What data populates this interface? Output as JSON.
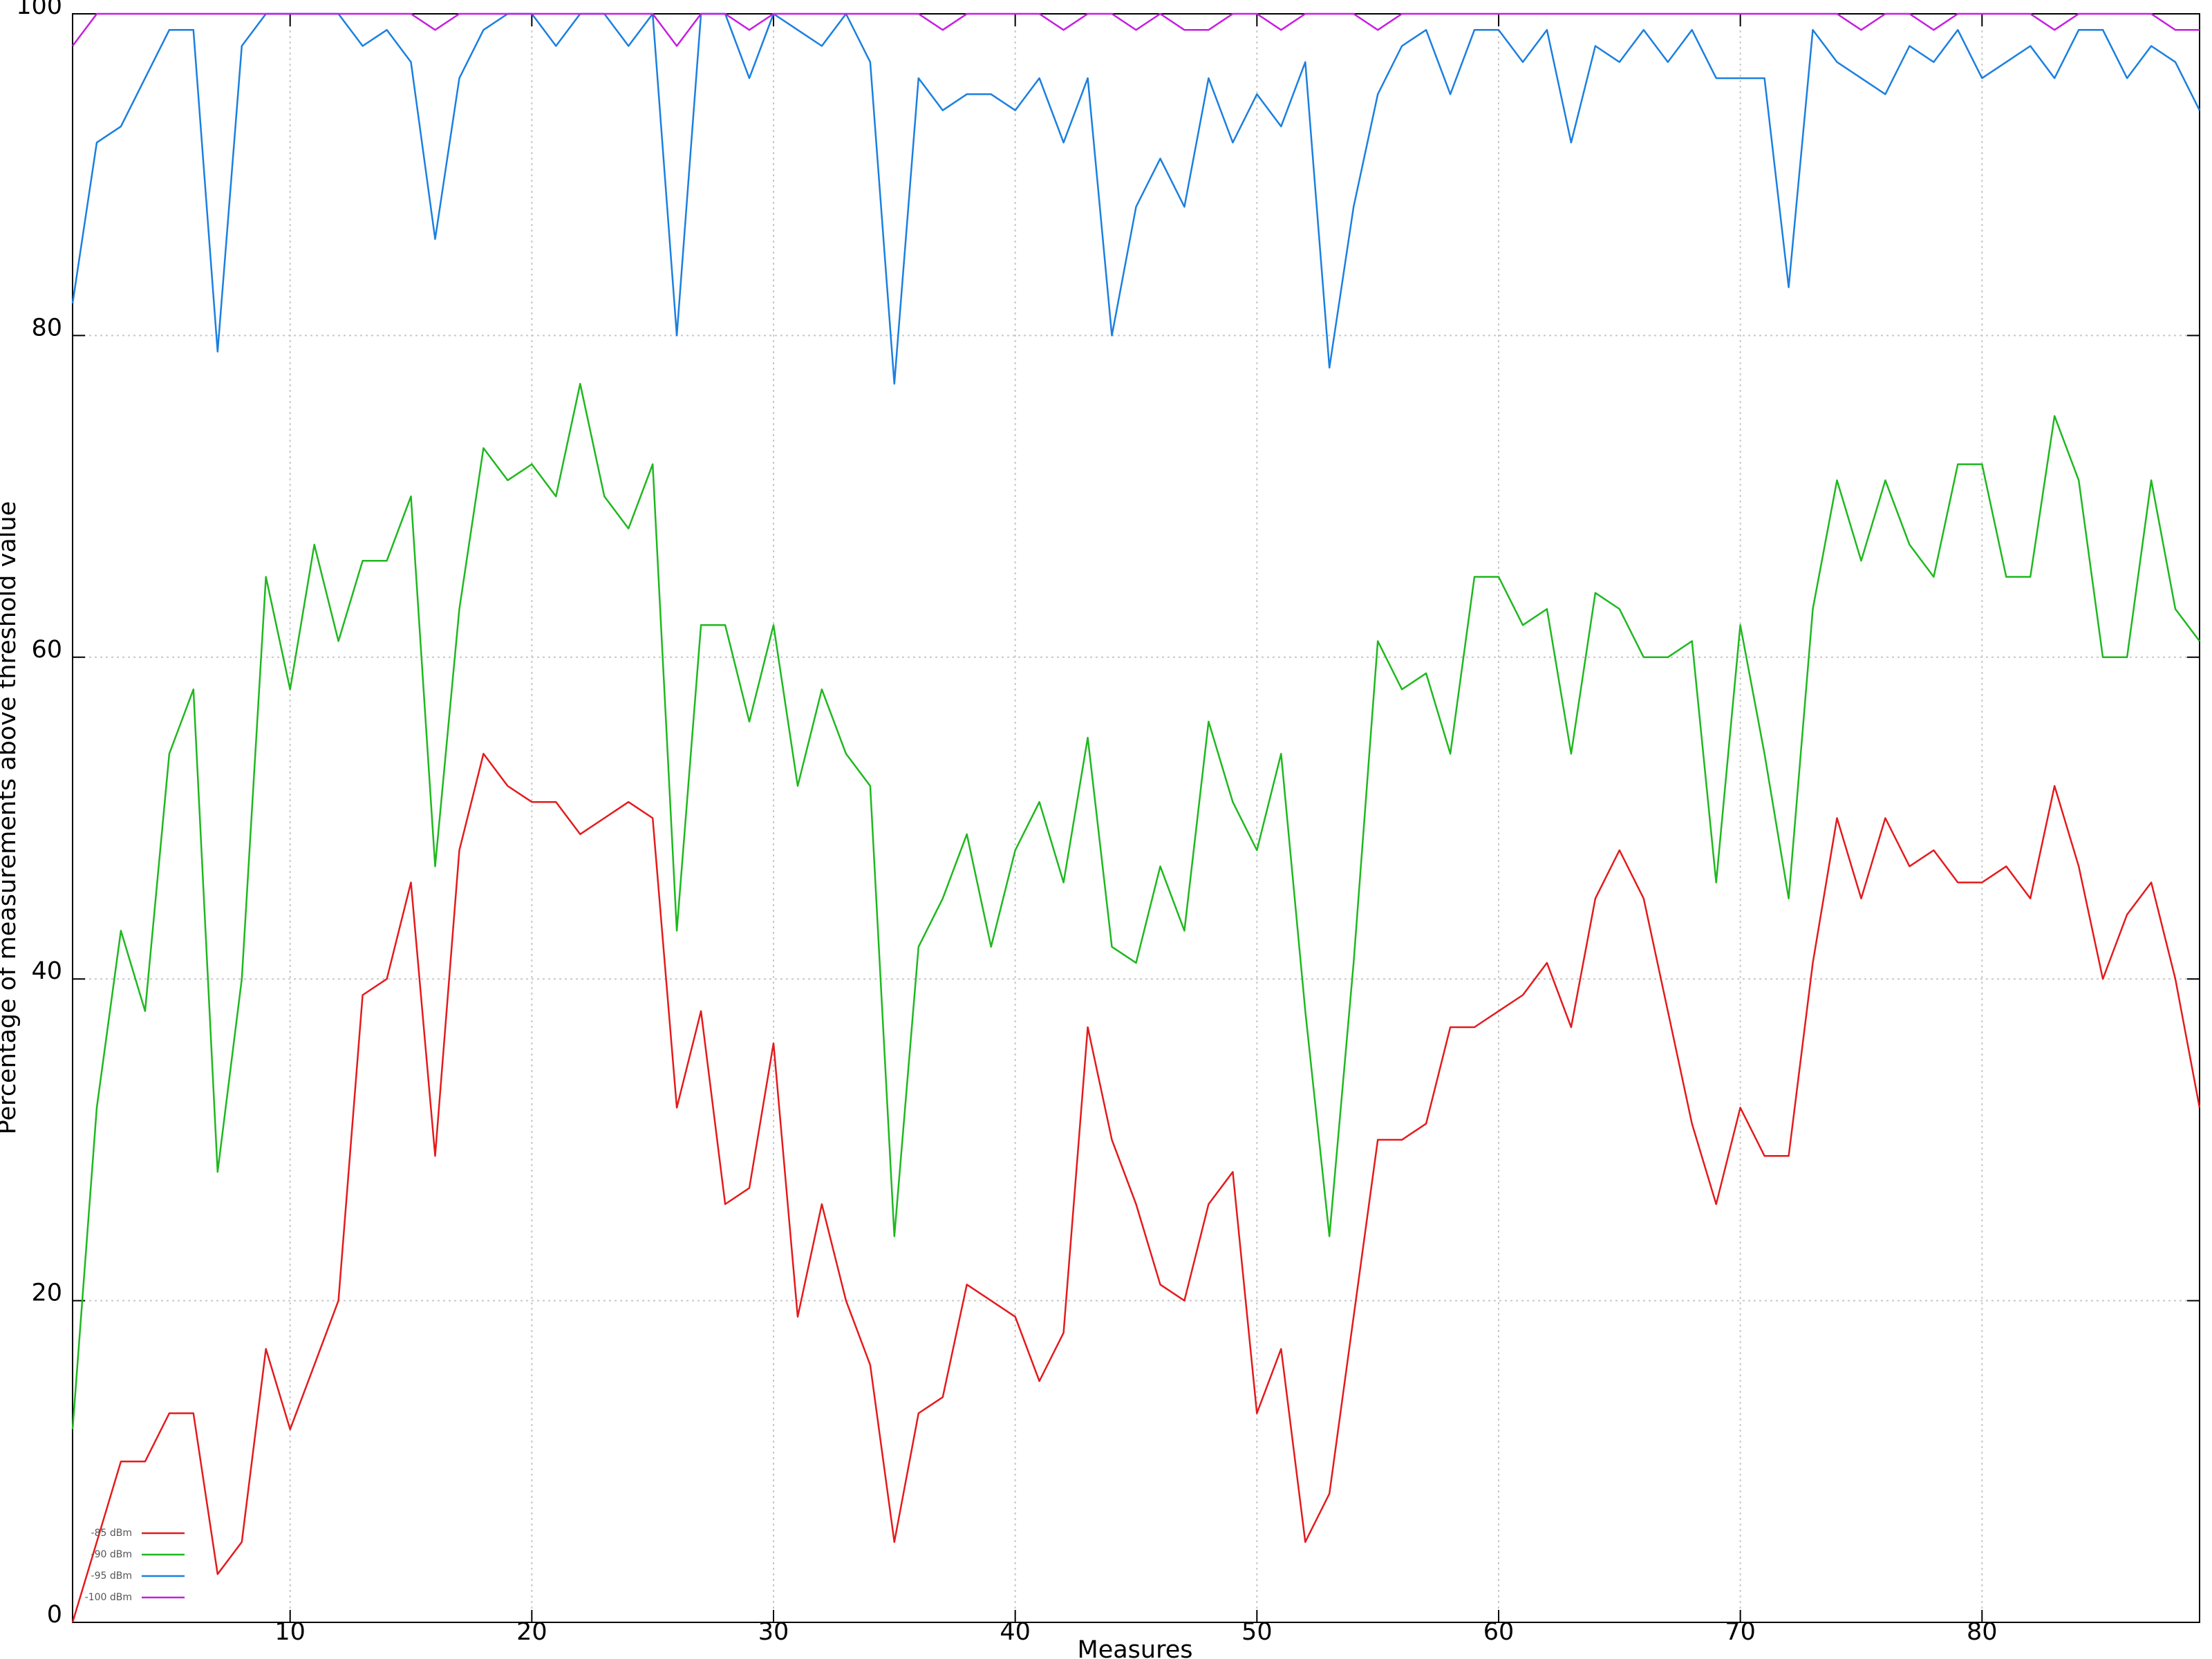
{
  "chart_data": {
    "type": "line",
    "x_label": "Measures",
    "y_label": "Percentage of measurements above threshold value",
    "x": [
      1,
      2,
      3,
      4,
      5,
      6,
      7,
      8,
      9,
      10,
      11,
      12,
      13,
      14,
      15,
      16,
      17,
      18,
      19,
      20,
      21,
      22,
      23,
      24,
      25,
      26,
      27,
      28,
      29,
      30,
      31,
      32,
      33,
      34,
      35,
      36,
      37,
      38,
      39,
      40,
      41,
      42,
      43,
      44,
      45,
      46,
      47,
      48,
      49,
      50,
      51,
      52,
      53,
      54,
      55,
      56,
      57,
      58,
      59,
      60,
      61,
      62,
      63,
      64,
      65,
      66,
      67,
      68,
      69,
      70,
      71,
      72,
      73,
      74,
      75,
      76,
      77,
      78,
      79,
      80,
      81,
      82,
      83,
      84,
      85,
      86,
      87,
      88,
      89
    ],
    "series": [
      {
        "name": "-85 dBm",
        "color": "#e41a1c",
        "values": [
          0,
          5,
          10,
          10,
          13,
          13,
          3,
          5,
          17,
          12,
          16,
          20,
          39,
          40,
          46,
          29,
          48,
          54,
          52,
          51,
          51,
          49,
          50,
          51,
          50,
          32,
          38,
          26,
          27,
          36,
          19,
          26,
          20,
          16,
          5,
          13,
          14,
          21,
          20,
          19,
          15,
          18,
          37,
          30,
          26,
          21,
          20,
          26,
          28,
          13,
          17,
          5,
          8,
          19,
          30,
          30,
          31,
          37,
          37,
          38,
          39,
          41,
          37,
          45,
          48,
          45,
          38,
          31,
          26,
          32,
          29,
          29,
          41,
          50,
          45,
          50,
          47,
          48,
          46,
          46,
          47,
          45,
          52,
          47,
          40,
          44,
          46,
          40,
          32
        ]
      },
      {
        "name": "-90 dBm",
        "color": "#1eb81e",
        "values": [
          12,
          32,
          43,
          38,
          54,
          58,
          28,
          40,
          65,
          58,
          67,
          61,
          66,
          66,
          70,
          47,
          63,
          73,
          71,
          72,
          70,
          77,
          70,
          68,
          72,
          43,
          62,
          62,
          56,
          62,
          52,
          58,
          54,
          52,
          24,
          42,
          45,
          49,
          42,
          48,
          51,
          46,
          55,
          42,
          41,
          47,
          43,
          56,
          51,
          48,
          54,
          38,
          24,
          41,
          61,
          58,
          59,
          54,
          65,
          65,
          62,
          63,
          54,
          64,
          63,
          60,
          60,
          61,
          46,
          62,
          54,
          45,
          63,
          71,
          66,
          71,
          67,
          65,
          72,
          72,
          65,
          65,
          75,
          71,
          60,
          60,
          71,
          63,
          61
        ]
      },
      {
        "name": "-95 dBm",
        "color": "#1a7fe0",
        "values": [
          82,
          92,
          93,
          96,
          99,
          99,
          79,
          98,
          100,
          100,
          100,
          100,
          98,
          99,
          97,
          86,
          96,
          99,
          100,
          100,
          98,
          100,
          100,
          98,
          100,
          80,
          100,
          100,
          96,
          100,
          99,
          98,
          100,
          97,
          77,
          96,
          94,
          95,
          95,
          94,
          96,
          92,
          96,
          80,
          88,
          91,
          88,
          96,
          92,
          95,
          93,
          97,
          78,
          88,
          95,
          98,
          99,
          95,
          99,
          99,
          97,
          99,
          92,
          98,
          97,
          99,
          97,
          99,
          96,
          96,
          96,
          83,
          99,
          97,
          96,
          95,
          98,
          97,
          99,
          96,
          97,
          98,
          96,
          99,
          99,
          96,
          98,
          97,
          94
        ]
      },
      {
        "name": "-100 dBm",
        "color": "#c61ee0",
        "values": [
          98,
          100,
          100,
          100,
          100,
          100,
          100,
          100,
          100,
          100,
          100,
          100,
          100,
          100,
          100,
          99,
          100,
          100,
          100,
          100,
          100,
          100,
          100,
          100,
          100,
          98,
          100,
          100,
          99,
          100,
          100,
          100,
          100,
          100,
          100,
          100,
          99,
          100,
          100,
          100,
          100,
          99,
          100,
          100,
          99,
          100,
          99,
          99,
          100,
          100,
          99,
          100,
          100,
          100,
          99,
          100,
          100,
          100,
          100,
          100,
          100,
          100,
          100,
          100,
          100,
          100,
          100,
          100,
          100,
          100,
          100,
          100,
          100,
          100,
          99,
          100,
          100,
          99,
          100,
          100,
          100,
          100,
          99,
          100,
          100,
          100,
          100,
          99,
          99
        ]
      }
    ],
    "xlim": [
      1,
      89
    ],
    "xticks": [
      10,
      20,
      30,
      40,
      50,
      60,
      70,
      80
    ],
    "ylim": [
      0,
      100
    ],
    "yticks": [
      0,
      20,
      40,
      60,
      80,
      100
    ],
    "grid": true,
    "legend": "bottom left"
  }
}
